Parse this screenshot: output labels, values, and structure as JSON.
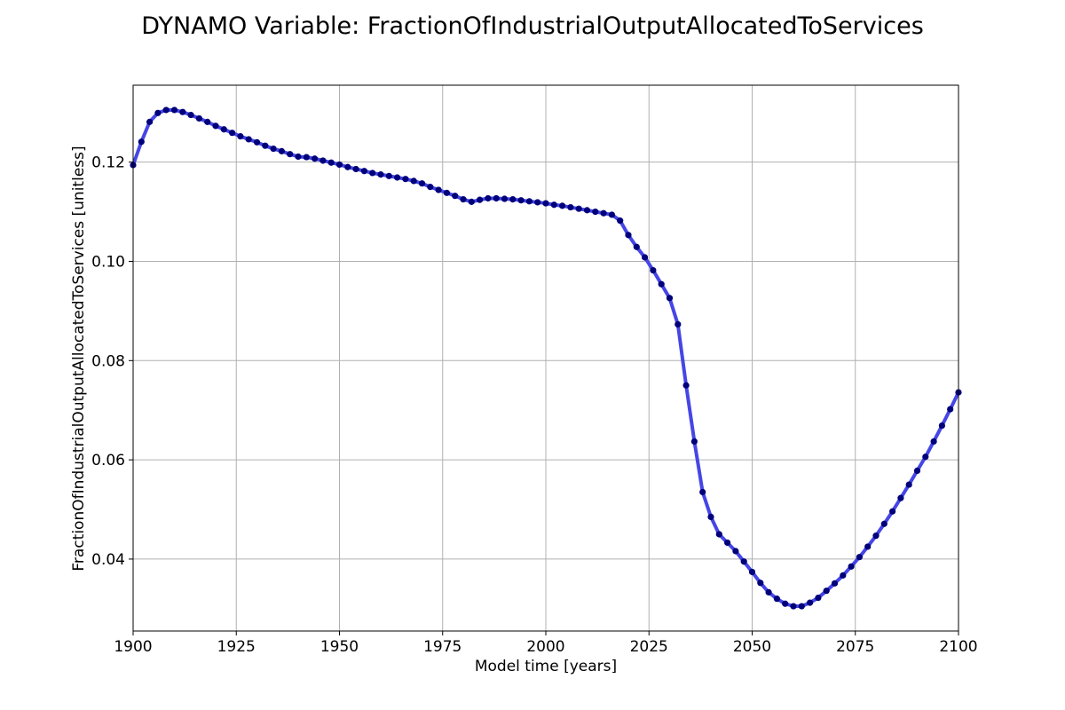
{
  "chart_data": {
    "type": "line",
    "title": "DYNAMO Variable: FractionOfIndustrialOutputAllocatedToServices",
    "xlabel": "Model time [years]",
    "ylabel": "FractionOfIndustrialOutputAllocatedToServices [unitless]",
    "xlim": [
      1900,
      2100
    ],
    "ylim": [
      0.0255,
      0.1355
    ],
    "x_ticks": [
      1900,
      1925,
      1950,
      1975,
      2000,
      2025,
      2050,
      2075,
      2100
    ],
    "y_ticks": [
      0.04,
      0.06,
      0.08,
      0.1,
      0.12
    ],
    "y_tick_labels": [
      "0.04",
      "0.06",
      "0.08",
      "0.10",
      "0.12"
    ],
    "grid": true,
    "series": [
      {
        "line_color": "#4646e6",
        "marker_color": "#00007a",
        "x": [
          1900,
          1902,
          1904,
          1906,
          1908,
          1910,
          1912,
          1914,
          1916,
          1918,
          1920,
          1922,
          1924,
          1926,
          1928,
          1930,
          1932,
          1934,
          1936,
          1938,
          1940,
          1942,
          1944,
          1946,
          1948,
          1950,
          1952,
          1954,
          1956,
          1958,
          1960,
          1962,
          1964,
          1966,
          1968,
          1970,
          1972,
          1974,
          1976,
          1978,
          1980,
          1982,
          1984,
          1986,
          1988,
          1990,
          1992,
          1994,
          1996,
          1998,
          2000,
          2002,
          2004,
          2006,
          2008,
          2010,
          2012,
          2014,
          2016,
          2018,
          2020,
          2022,
          2024,
          2026,
          2028,
          2030,
          2032,
          2034,
          2036,
          2038,
          2040,
          2042,
          2044,
          2046,
          2048,
          2050,
          2052,
          2054,
          2056,
          2058,
          2060,
          2062,
          2064,
          2066,
          2068,
          2070,
          2072,
          2074,
          2076,
          2078,
          2080,
          2082,
          2084,
          2086,
          2088,
          2090,
          2092,
          2094,
          2096,
          2098,
          2100
        ],
        "y": [
          0.1194,
          0.1241,
          0.1281,
          0.1299,
          0.1305,
          0.1305,
          0.1301,
          0.1295,
          0.1288,
          0.1281,
          0.1273,
          0.1266,
          0.1259,
          0.1252,
          0.1246,
          0.124,
          0.1233,
          0.1227,
          0.1222,
          0.1216,
          0.1211,
          0.121,
          0.1207,
          0.1203,
          0.1199,
          0.1195,
          0.119,
          0.1186,
          0.1182,
          0.1178,
          0.1175,
          0.1172,
          0.1169,
          0.1166,
          0.1162,
          0.1157,
          0.115,
          0.1144,
          0.1138,
          0.1132,
          0.1125,
          0.112,
          0.1124,
          0.1127,
          0.1127,
          0.1126,
          0.1125,
          0.1123,
          0.1121,
          0.1119,
          0.1117,
          0.1114,
          0.1112,
          0.1109,
          0.1106,
          0.1103,
          0.11,
          0.1097,
          0.1094,
          0.1082,
          0.1053,
          0.1029,
          0.1008,
          0.0982,
          0.0954,
          0.0926,
          0.0873,
          0.075,
          0.0637,
          0.0535,
          0.0485,
          0.045,
          0.0433,
          0.0416,
          0.0395,
          0.0374,
          0.0352,
          0.0333,
          0.032,
          0.031,
          0.0305,
          0.0305,
          0.0312,
          0.0322,
          0.0336,
          0.0351,
          0.0367,
          0.0385,
          0.0404,
          0.0425,
          0.0447,
          0.0471,
          0.0496,
          0.0523,
          0.055,
          0.0578,
          0.0606,
          0.0637,
          0.0669,
          0.0702,
          0.0736
        ]
      }
    ]
  }
}
